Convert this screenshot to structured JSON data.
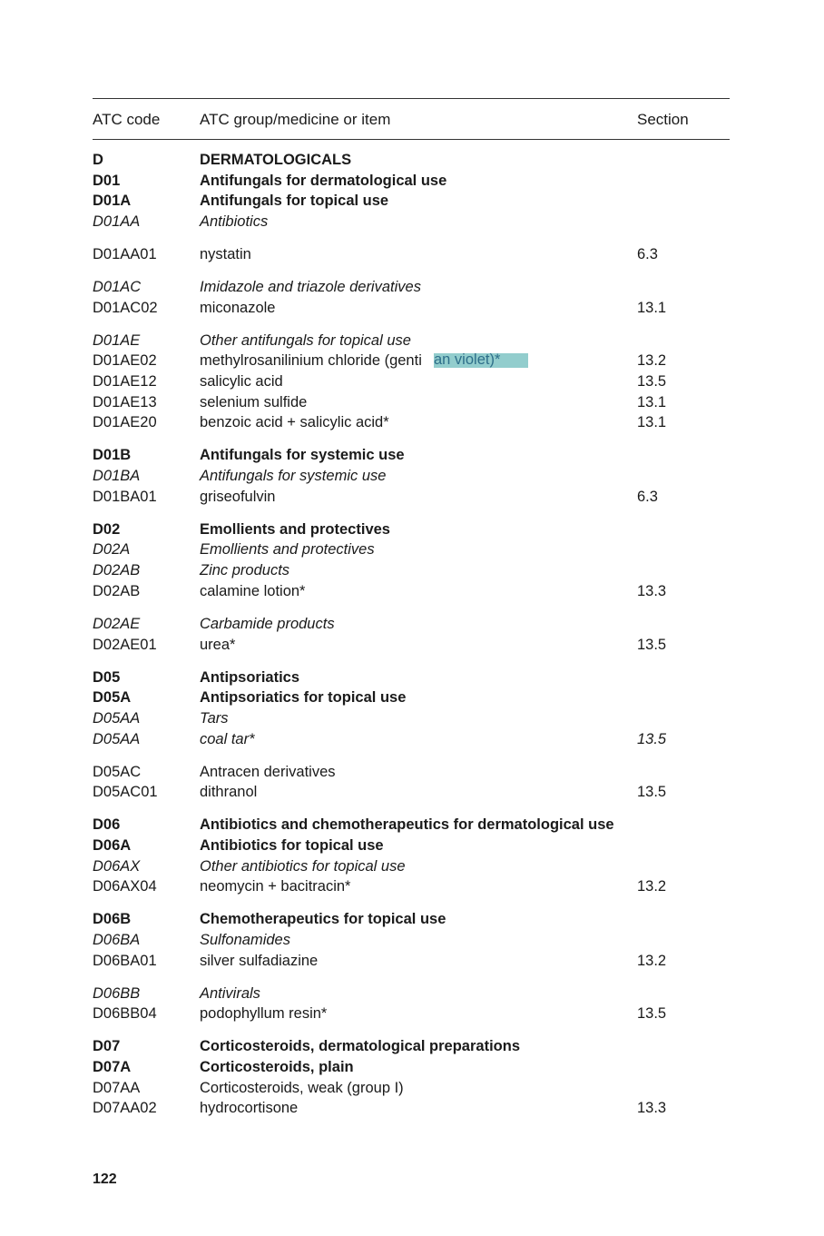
{
  "header": {
    "code": "ATC code",
    "item": "ATC group/medicine or item",
    "section": "Section"
  },
  "rows": [
    {
      "code": "D",
      "item": "DERMATOLOGICALS",
      "section": "",
      "style": "bold",
      "gap": false
    },
    {
      "code": "D01",
      "item": "Antifungals for dermatological use",
      "section": "",
      "style": "bold",
      "gap": false
    },
    {
      "code": "D01A",
      "item": "Antifungals for topical use",
      "section": "",
      "style": "bold",
      "gap": false
    },
    {
      "code": "D01AA",
      "item": "Antibiotics",
      "section": "",
      "style": "italic",
      "gap": false
    },
    {
      "code": "D01AA01",
      "item": "nystatin",
      "section": "6.3",
      "style": "normal",
      "gap": true
    },
    {
      "code": "D01AC",
      "item": "Imidazole and triazole derivatives",
      "section": "",
      "style": "italic",
      "gap": true
    },
    {
      "code": "D01AC02",
      "item": "miconazole",
      "section": "13.1",
      "style": "normal",
      "gap": false
    },
    {
      "code": "D01AE",
      "item": "Other antifungals for topical use",
      "section": "",
      "style": "italic",
      "gap": true
    },
    {
      "code": "D01AE02",
      "item": "methylrosanilinium chloride (genti",
      "section": "13.2",
      "style": "normal",
      "gap": false
    },
    {
      "code": "D01AE12",
      "item": "salicylic acid",
      "section": "13.5",
      "style": "normal",
      "gap": false
    },
    {
      "code": "D01AE13",
      "item": "selenium sulfide",
      "section": "13.1",
      "style": "normal",
      "gap": false
    },
    {
      "code": "D01AE20",
      "item": "benzoic acid + salicylic acid*",
      "section": "13.1",
      "style": "normal",
      "gap": false
    },
    {
      "code": "D01B",
      "item": "Antifungals for systemic use",
      "section": "",
      "style": "bold",
      "gap": true
    },
    {
      "code": "D01BA",
      "item": "Antifungals for systemic use",
      "section": "",
      "style": "italic",
      "gap": false
    },
    {
      "code": "D01BA01",
      "item": "griseofulvin",
      "section": "6.3",
      "style": "normal",
      "gap": false
    },
    {
      "code": "D02",
      "item": "Emollients and protectives",
      "section": "",
      "style": "bold",
      "gap": true
    },
    {
      "code": "D02A",
      "item": "Emollients and protectives",
      "section": "",
      "style": "italic",
      "gap": false
    },
    {
      "code": "D02AB",
      "item": "Zinc products",
      "section": "",
      "style": "italic",
      "gap": false
    },
    {
      "code": "D02AB",
      "item": "calamine lotion*",
      "section": "13.3",
      "style": "normal",
      "gap": false
    },
    {
      "code": "D02AE",
      "item": "Carbamide products",
      "section": "",
      "style": "italic",
      "gap": true
    },
    {
      "code": "D02AE01",
      "item": "urea*",
      "section": "13.5",
      "style": "normal",
      "gap": false
    },
    {
      "code": "D05",
      "item": "Antipsoriatics",
      "section": "",
      "style": "bold",
      "gap": true
    },
    {
      "code": "D05A",
      "item": "Antipsoriatics for topical use",
      "section": "",
      "style": "bold",
      "gap": false
    },
    {
      "code": "D05AA",
      "item": "Tars",
      "section": "",
      "style": "italic",
      "gap": false
    },
    {
      "code": "D05AA",
      "item": "coal tar*",
      "section": "13.5",
      "style": "italic",
      "gap": false
    },
    {
      "code": "D05AC",
      "item": "Antracen derivatives",
      "section": "",
      "style": "normal",
      "gap": true
    },
    {
      "code": "D05AC01",
      "item": "dithranol",
      "section": "13.5",
      "style": "normal",
      "gap": false
    },
    {
      "code": "D06",
      "item": "Antibiotics and chemotherapeutics for dermatological use",
      "section": "",
      "style": "bold",
      "gap": true
    },
    {
      "code": "D06A",
      "item": "Antibiotics for topical use",
      "section": "",
      "style": "bold",
      "gap": false
    },
    {
      "code": "D06AX",
      "item": "Other antibiotics for topical use",
      "section": "",
      "style": "italic",
      "gap": false
    },
    {
      "code": "D06AX04",
      "item": "neomycin + bacitracin*",
      "section": "13.2",
      "style": "normal",
      "gap": false
    },
    {
      "code": "D06B",
      "item": "Chemotherapeutics for topical use",
      "section": "",
      "style": "bold",
      "gap": true
    },
    {
      "code": "D06BA",
      "item": "Sulfonamides",
      "section": "",
      "style": "italic",
      "gap": false
    },
    {
      "code": "D06BA01",
      "item": "silver sulfadiazine",
      "section": "13.2",
      "style": "normal",
      "gap": false
    },
    {
      "code": "D06BB",
      "item": "Antivirals",
      "section": "",
      "style": "italic",
      "gap": true
    },
    {
      "code": "D06BB04",
      "item": "podophyllum resin*",
      "section": "13.5",
      "style": "normal",
      "gap": false
    },
    {
      "code": "D07",
      "item": "Corticosteroids, dermatological preparations",
      "section": "",
      "style": "bold",
      "gap": true
    },
    {
      "code": "D07A",
      "item": "Corticosteroids, plain",
      "section": "",
      "style": "bold",
      "gap": false
    },
    {
      "code": "D07AA",
      "item": "Corticosteroids, weak (group I)",
      "section": "",
      "style": "normal",
      "gap": false
    },
    {
      "code": "D07AA02",
      "item": "hydrocortisone",
      "section": "13.3",
      "style": "normal",
      "gap": false
    }
  ],
  "highlight": {
    "text": "an violet)*",
    "color": "#7fc4c4"
  },
  "footer": {
    "page_number": "122"
  }
}
